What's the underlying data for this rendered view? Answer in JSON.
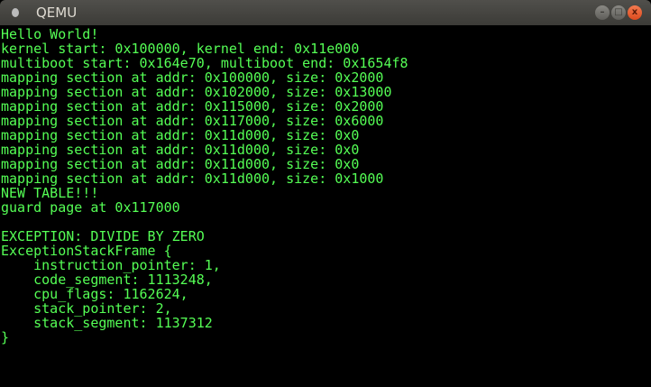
{
  "window": {
    "title": "QEMU",
    "minimize_icon": "minimize-icon",
    "maximize_icon": "maximize-icon",
    "close_icon": "close-icon"
  },
  "colors": {
    "text": "#55ff55",
    "background": "#000000"
  },
  "console": {
    "lines": [
      "Hello World!",
      "kernel start: 0x100000, kernel end: 0x11e000",
      "multiboot start: 0x164e70, multiboot end: 0x1654f8",
      "mapping section at addr: 0x100000, size: 0x2000",
      "mapping section at addr: 0x102000, size: 0x13000",
      "mapping section at addr: 0x115000, size: 0x2000",
      "mapping section at addr: 0x117000, size: 0x6000",
      "mapping section at addr: 0x11d000, size: 0x0",
      "mapping section at addr: 0x11d000, size: 0x0",
      "mapping section at addr: 0x11d000, size: 0x0",
      "mapping section at addr: 0x11d000, size: 0x1000",
      "NEW TABLE!!!",
      "guard page at 0x117000",
      "",
      "EXCEPTION: DIVIDE BY ZERO",
      "ExceptionStackFrame {",
      "    instruction_pointer: 1,",
      "    code_segment: 1113248,",
      "    cpu_flags: 1162624,",
      "    stack_pointer: 2,",
      "    stack_segment: 1137312",
      "}"
    ]
  }
}
